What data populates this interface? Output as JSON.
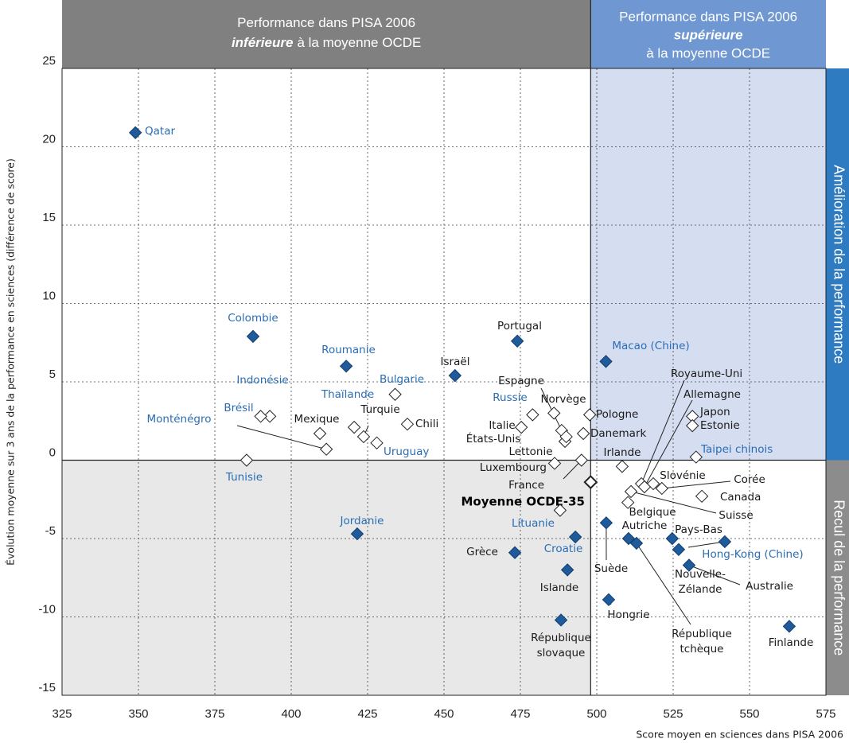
{
  "chart_data": {
    "type": "scatter",
    "header_left": [
      "Performance dans PISA 2006",
      "inférieure",
      "à la moyenne OCDE"
    ],
    "header_right": [
      "Performance dans PISA 2006",
      "supérieure",
      "à la moyenne OCDE"
    ],
    "side_top": "Amélioration de la performance",
    "side_bottom": "Recul de la performance",
    "xlabel": "Score moyen en sciences dans PISA 2006",
    "ylabel": "Évolution moyenne sur 3 ans de la performance en sciences (différence de score)",
    "xlim": [
      325,
      575
    ],
    "ylim": [
      -15,
      25
    ],
    "xticks": [
      325,
      350,
      375,
      400,
      425,
      450,
      475,
      500,
      525,
      550,
      575
    ],
    "yticks": [
      -15,
      -10,
      -5,
      0,
      5,
      10,
      15,
      20,
      25
    ],
    "reference_x": 498,
    "reference_y": 0,
    "grid": true,
    "colors": {
      "header_left": "#808080",
      "header_right": "#6f97d1",
      "side_top": "#2f7bc2",
      "side_bottom": "#8c8c8c",
      "shade_top": "#d5ddf0",
      "shade_bottom": "#e8e8e8",
      "marker": "#1f5a9a"
    },
    "points": [
      {
        "label": "Qatar",
        "x": 349,
        "y": 20.9,
        "marker": "filled",
        "label_color": "#2a6db5"
      },
      {
        "label": "Colombie",
        "x": 387.5,
        "y": 7.9,
        "marker": "filled",
        "label_color": "#2a6db5"
      },
      {
        "label": "Roumanie",
        "x": 418,
        "y": 6.0,
        "marker": "filled",
        "label_color": "#2a6db5"
      },
      {
        "label": "Israël",
        "x": 453.6,
        "y": 5.4,
        "marker": "filled",
        "label_color": "#1a1a1a"
      },
      {
        "label": "Portugal",
        "x": 474,
        "y": 7.6,
        "marker": "filled",
        "label_color": "#1a1a1a"
      },
      {
        "label": "Macao (Chine)",
        "x": 503,
        "y": 6.3,
        "marker": "filled",
        "label_color": "#2a6db5"
      },
      {
        "label": "Indonésie",
        "x": 393,
        "y": 2.8,
        "marker": "hollow",
        "label_color": "#2a6db5"
      },
      {
        "label": "Bulgarie",
        "x": 434,
        "y": 4.2,
        "marker": "hollow",
        "label_color": "#2a6db5"
      },
      {
        "label": "Brésil",
        "x": 390,
        "y": 2.8,
        "marker": "hollow",
        "label_color": "#2a6db5"
      },
      {
        "label": "Thaïlande",
        "x": 420.6,
        "y": 2.1,
        "marker": "hollow",
        "label_color": "#2a6db5"
      },
      {
        "label": "Espagne",
        "x": 488.5,
        "y": 1.9,
        "marker": "hollow",
        "label_color": "#1a1a1a"
      },
      {
        "label": "Norvège",
        "x": 486,
        "y": 3.0,
        "marker": "hollow",
        "label_color": "#1a1a1a"
      },
      {
        "label": "Russie",
        "x": 479,
        "y": 2.9,
        "marker": "hollow",
        "label_color": "#2a6db5"
      },
      {
        "label": "Monténégro",
        "x": 411.5,
        "y": 0.7,
        "marker": "hollow",
        "label_color": "#2a6db5"
      },
      {
        "label": "Mexique",
        "x": 409.4,
        "y": 1.7,
        "marker": "hollow",
        "label_color": "#1a1a1a"
      },
      {
        "label": "Turquie",
        "x": 423.7,
        "y": 1.5,
        "marker": "hollow",
        "label_color": "#1a1a1a"
      },
      {
        "label": "Italie",
        "x": 475.3,
        "y": 2.1,
        "marker": "hollow",
        "label_color": "#1a1a1a"
      },
      {
        "label": "Chili",
        "x": 438,
        "y": 2.3,
        "marker": "hollow",
        "label_color": "#1a1a1a"
      },
      {
        "label": "Pologne",
        "x": 497.7,
        "y": 2.9,
        "marker": "hollow",
        "label_color": "#1a1a1a"
      },
      {
        "label": "États-Unis",
        "x": 489.6,
        "y": 1.2,
        "marker": "hollow",
        "label_color": "#1a1a1a"
      },
      {
        "label": "Danemark",
        "x": 495.6,
        "y": 1.7,
        "marker": "hollow",
        "label_color": "#1a1a1a"
      },
      {
        "label": "Uruguay",
        "x": 428,
        "y": 1.1,
        "marker": "hollow",
        "label_color": "#2a6db5"
      },
      {
        "label": "Lettonie",
        "x": 490,
        "y": 1.5,
        "marker": "hollow",
        "label_color": "#1a1a1a"
      },
      {
        "label": "Irlande",
        "x": 508.3,
        "y": -0.4,
        "marker": "hollow",
        "label_color": "#1a1a1a"
      },
      {
        "label": "Royaume-Uni",
        "x": 514.6,
        "y": -1.5,
        "marker": "hollow",
        "label_color": "#1a1a1a"
      },
      {
        "label": "Allemagne",
        "x": 515.6,
        "y": -1.7,
        "marker": "hollow",
        "label_color": "#1a1a1a"
      },
      {
        "label": "Japon",
        "x": 531.3,
        "y": 2.8,
        "marker": "hollow",
        "label_color": "#1a1a1a"
      },
      {
        "label": "Estonie",
        "x": 531.3,
        "y": 2.2,
        "marker": "hollow",
        "label_color": "#1a1a1a"
      },
      {
        "label": "Taipei chinois",
        "x": 532.5,
        "y": 0.2,
        "marker": "hollow",
        "label_color": "#2a6db5"
      },
      {
        "label": "Tunisie",
        "x": 385.4,
        "y": 0.0,
        "marker": "hollow",
        "label_color": "#2a6db5"
      },
      {
        "label": "Luxembourg",
        "x": 486.2,
        "y": -0.2,
        "marker": "hollow",
        "label_color": "#1a1a1a"
      },
      {
        "label": "France",
        "x": 495,
        "y": 0.0,
        "marker": "hollow",
        "label_color": "#1a1a1a"
      },
      {
        "label": "Moyenne OCDE-35",
        "x": 498,
        "y": -1.4,
        "marker": "hollow",
        "label_color": "#000000"
      },
      {
        "label": "Slovénie",
        "x": 518.5,
        "y": -1.5,
        "marker": "hollow",
        "label_color": "#1a1a1a"
      },
      {
        "label": "Corée",
        "x": 521.3,
        "y": -1.8,
        "marker": "hollow",
        "label_color": "#1a1a1a"
      },
      {
        "label": "Canada",
        "x": 534.4,
        "y": -2.3,
        "marker": "hollow",
        "label_color": "#1a1a1a"
      },
      {
        "label": "Belgique",
        "x": 510.2,
        "y": -2.7,
        "marker": "hollow",
        "label_color": "#1a1a1a"
      },
      {
        "label": "Suisse",
        "x": 511.2,
        "y": -2.0,
        "marker": "hollow",
        "label_color": "#1a1a1a"
      },
      {
        "label": "Jordanie",
        "x": 421.6,
        "y": -4.7,
        "marker": "filled",
        "label_color": "#2a6db5"
      },
      {
        "label": "Lituanie",
        "x": 488,
        "y": -3.2,
        "marker": "hollow",
        "label_color": "#2a6db5"
      },
      {
        "label": "Autriche",
        "x": 510.4,
        "y": -5.0,
        "marker": "filled",
        "label_color": "#1a1a1a"
      },
      {
        "label": "Pays-Bas",
        "x": 524.7,
        "y": -5.0,
        "marker": "filled",
        "label_color": "#1a1a1a"
      },
      {
        "label": "Croatie",
        "x": 493,
        "y": -4.9,
        "marker": "filled",
        "label_color": "#2a6db5"
      },
      {
        "label": "Grèce",
        "x": 473.2,
        "y": -5.9,
        "marker": "filled",
        "label_color": "#1a1a1a"
      },
      {
        "label": "Hong-Kong (Chine)",
        "x": 541.9,
        "y": -5.2,
        "marker": "filled",
        "label_color": "#2a6db5"
      },
      {
        "label": "Suède",
        "x": 503.1,
        "y": -4.0,
        "marker": "filled",
        "label_color": "#1a1a1a"
      },
      {
        "label": [
          "Nouvelle-",
          "Zélande"
        ],
        "x": 526.8,
        "y": -5.7,
        "marker": "filled",
        "label_color": "#1a1a1a"
      },
      {
        "label": "Islande",
        "x": 490.4,
        "y": -7.0,
        "marker": "filled",
        "label_color": "#1a1a1a"
      },
      {
        "label": "Australie",
        "x": 530.2,
        "y": -6.7,
        "marker": "filled",
        "label_color": "#1a1a1a"
      },
      {
        "label": "Hongrie",
        "x": 503.9,
        "y": -8.9,
        "marker": "filled",
        "label_color": "#1a1a1a"
      },
      {
        "label": [
          "République",
          "tchèque"
        ],
        "x": 513,
        "y": -5.3,
        "marker": "filled",
        "label_color": "#1a1a1a"
      },
      {
        "label": [
          "République",
          "slovaque"
        ],
        "x": 488.3,
        "y": -10.2,
        "marker": "filled",
        "label_color": "#1a1a1a"
      },
      {
        "label": "Finlande",
        "x": 563,
        "y": -10.6,
        "marker": "filled",
        "label_color": "#1a1a1a"
      }
    ]
  }
}
